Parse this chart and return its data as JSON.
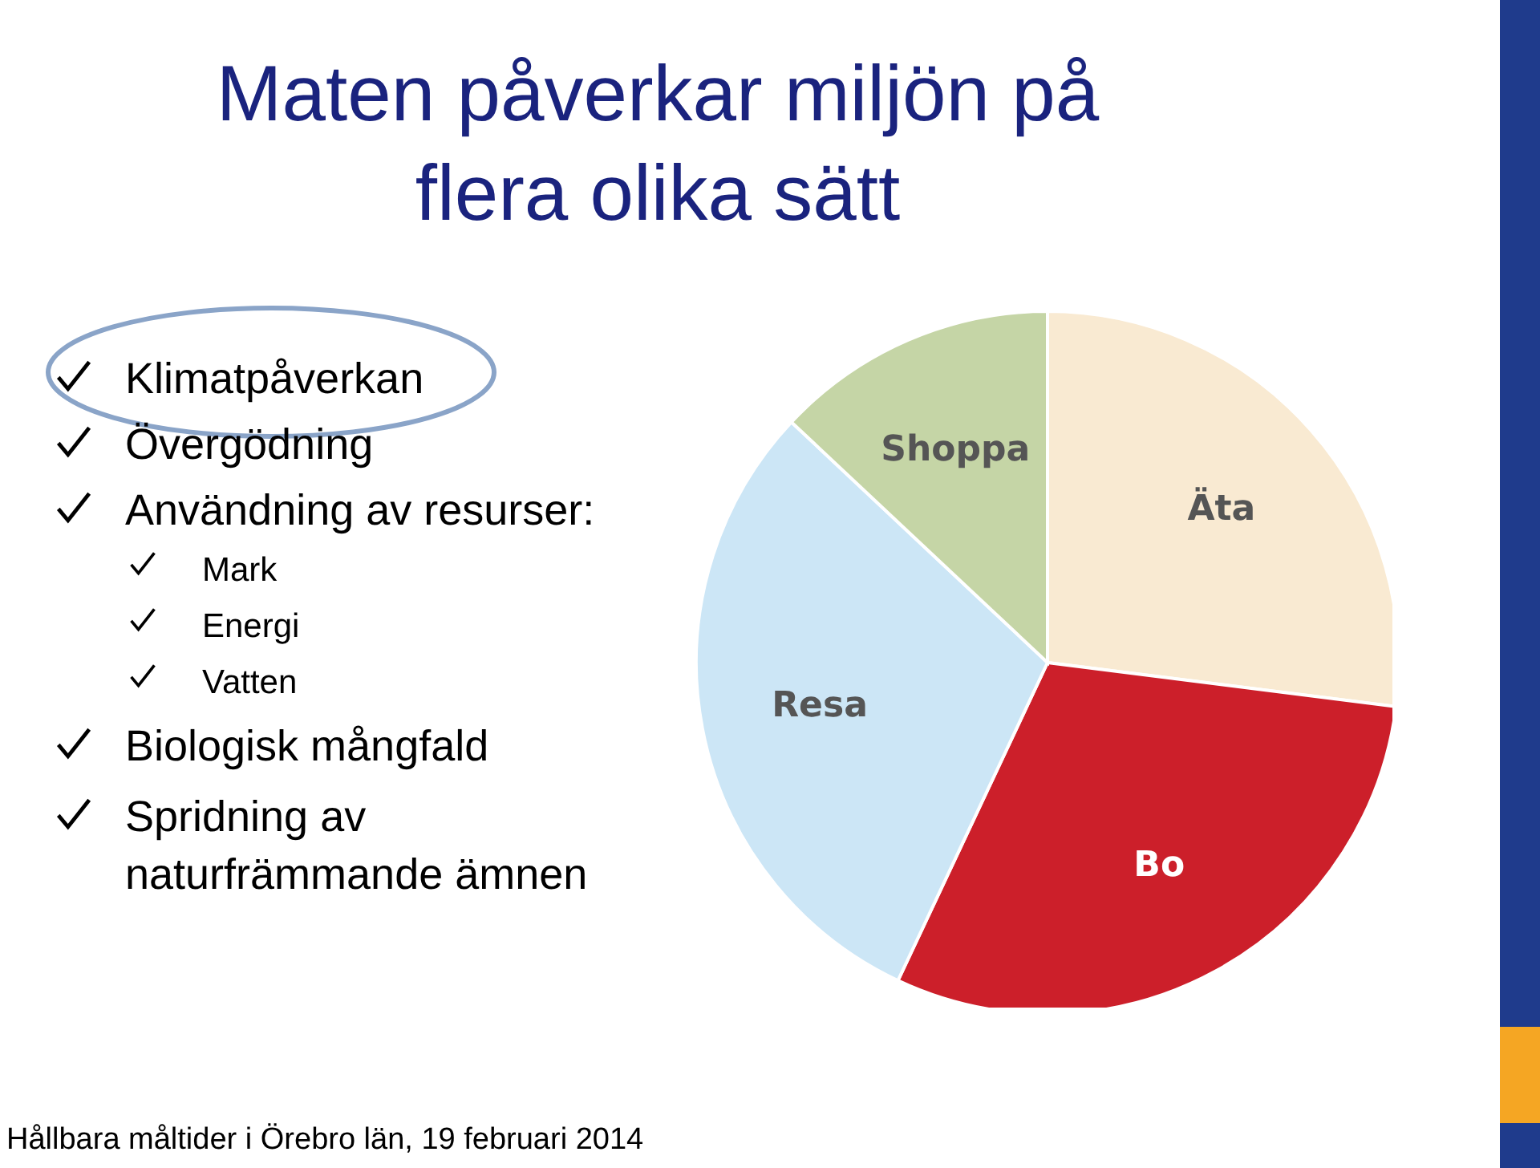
{
  "chart_data": {
    "type": "pie",
    "title": "Maten påverkar miljön på flera olika sätt",
    "categories": [
      "Äta",
      "Bo",
      "Resa",
      "Shoppa"
    ],
    "values": [
      27,
      30,
      30,
      13
    ],
    "colors": [
      "#f9ead2",
      "#cc1f2a",
      "#cce6f6",
      "#c5d5a6"
    ],
    "annotations": [
      "Klimatpåverkan",
      "Övergödning",
      "Användning av resurser:",
      "Mark",
      "Energi",
      "Vatten",
      "Biologisk mångfald",
      "Spridning av naturfrämmande ämnen",
      "Hållbara måltider i Örebro län, 19 februari 2014"
    ]
  }
}
